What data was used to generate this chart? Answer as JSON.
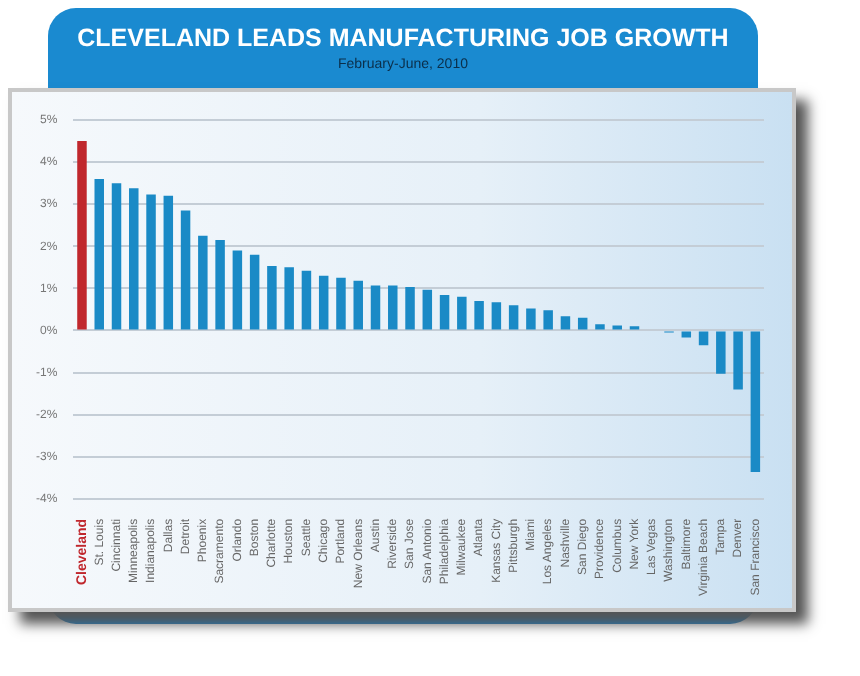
{
  "chart_data": {
    "type": "bar",
    "title": "CLEVELAND LEADS MANUFACTURING JOB GROWTH",
    "subtitle": "February-June, 2010",
    "categories": [
      "Cleveland",
      "St. Louis",
      "Cincinnati",
      "Minneapolis",
      "Indianapolis",
      "Dallas",
      "Detroit",
      "Phoenix",
      "Sacramento",
      "Orlando",
      "Boston",
      "Charlotte",
      "Houston",
      "Seattle",
      "Chicago",
      "Portland",
      "New Orleans",
      "Austin",
      "Riverside",
      "San Jose",
      "San Antonio",
      "Philadelphia",
      "Milwaukee",
      "Atlanta",
      "Kansas City",
      "Pittsburgh",
      "Miami",
      "Los Angeles",
      "Nashville",
      "San Diego",
      "Providence",
      "Columbus",
      "New York",
      "Las Vegas",
      "Washington",
      "Baltimore",
      "Virginia Beach",
      "Tampa",
      "Denver",
      "San Francisco"
    ],
    "values": [
      4.5,
      3.6,
      3.5,
      3.38,
      3.23,
      3.2,
      2.85,
      2.25,
      2.15,
      1.9,
      1.8,
      1.53,
      1.5,
      1.42,
      1.3,
      1.25,
      1.18,
      1.07,
      1.07,
      1.03,
      0.97,
      0.84,
      0.8,
      0.7,
      0.67,
      0.6,
      0.52,
      0.48,
      0.34,
      0.3,
      0.15,
      0.12,
      0.1,
      0.02,
      -0.05,
      -0.17,
      -0.35,
      -1.03,
      -1.4,
      -3.36
    ],
    "colors": [
      "#c0272d",
      "#1a8ac6",
      "#1a8ac6",
      "#1a8ac6",
      "#1a8ac6",
      "#1a8ac6",
      "#1a8ac6",
      "#1a8ac6",
      "#1a8ac6",
      "#1a8ac6",
      "#1a8ac6",
      "#1a8ac6",
      "#1a8ac6",
      "#1a8ac6",
      "#1a8ac6",
      "#1a8ac6",
      "#1a8ac6",
      "#1a8ac6",
      "#1a8ac6",
      "#1a8ac6",
      "#1a8ac6",
      "#1a8ac6",
      "#1a8ac6",
      "#1a8ac6",
      "#1a8ac6",
      "#1a8ac6",
      "#1a8ac6",
      "#1a8ac6",
      "#1a8ac6",
      "#1a8ac6",
      "#1a8ac6",
      "#1a8ac6",
      "#1a8ac6",
      "#1a8ac6",
      "#1a8ac6",
      "#1a8ac6",
      "#1a8ac6",
      "#1a8ac6",
      "#1a8ac6",
      "#1a8ac6"
    ],
    "ylim": [
      -4,
      5
    ],
    "yticks": [
      {
        "value": -4,
        "label": "-4%"
      },
      {
        "value": -3,
        "label": "-3%"
      },
      {
        "value": -2,
        "label": "-2%"
      },
      {
        "value": -1,
        "label": "-1%"
      },
      {
        "value": 0,
        "label": "0%"
      },
      {
        "value": 1,
        "label": "1%"
      },
      {
        "value": 2,
        "label": "2%"
      },
      {
        "value": 3,
        "label": "3%"
      },
      {
        "value": 4,
        "label": "4%"
      },
      {
        "value": 5,
        "label": "5%"
      }
    ],
    "grid": "y",
    "legend": false
  }
}
